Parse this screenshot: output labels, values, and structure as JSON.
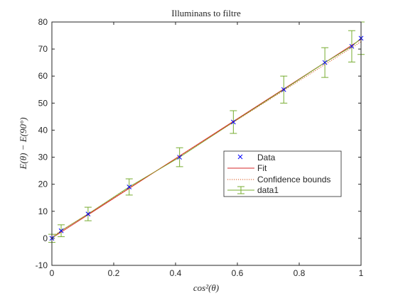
{
  "chart_data": {
    "type": "scatter",
    "title": "Illuminans to filtre",
    "xlabel": "cos²(θ)",
    "ylabel": "E(θ) − E(90°)",
    "xlim": [
      0,
      1
    ],
    "ylim": [
      -10,
      80
    ],
    "x_ticks": [
      "0",
      "0.2",
      "0.4",
      "0.6",
      "0.8",
      "1"
    ],
    "y_ticks": [
      "-10",
      "0",
      "10",
      "20",
      "30",
      "40",
      "50",
      "60",
      "70",
      "80"
    ],
    "x_tick_values": [
      0,
      0.2,
      0.4,
      0.6,
      0.8,
      1
    ],
    "y_tick_values": [
      -10,
      0,
      10,
      20,
      30,
      40,
      50,
      60,
      70,
      80
    ],
    "grid": false,
    "legend_position": "right",
    "series": [
      {
        "name": "Data",
        "kind": "markers",
        "marker": "x",
        "color": "#0000ff",
        "x": [
          0,
          0.03,
          0.117,
          0.25,
          0.413,
          0.587,
          0.75,
          0.883,
          0.97,
          1.0
        ],
        "y": [
          0,
          2.8,
          9.0,
          19.0,
          30.0,
          43.0,
          55.0,
          65.0,
          71.0,
          74.0
        ]
      },
      {
        "name": "Fit",
        "kind": "line",
        "color": "#d62728",
        "x": [
          0,
          1
        ],
        "y": [
          0.1,
          73.6
        ]
      },
      {
        "name": "Confidence bounds",
        "kind": "dotted",
        "color": "#d95319",
        "x": [
          0,
          1
        ],
        "y": [
          0.6,
          72.7
        ]
      },
      {
        "name": "data1",
        "kind": "errorbar",
        "color": "#77ac30",
        "x": [
          0,
          0.03,
          0.117,
          0.25,
          0.413,
          0.587,
          0.75,
          0.883,
          0.97,
          1.0
        ],
        "y": [
          0,
          2.8,
          9.0,
          19.0,
          30.0,
          43.0,
          55.0,
          65.0,
          71.0,
          74.0
        ],
        "err": [
          1.5,
          2.2,
          2.5,
          3.0,
          3.5,
          4.2,
          5.0,
          5.5,
          5.8,
          6.0
        ]
      }
    ]
  }
}
